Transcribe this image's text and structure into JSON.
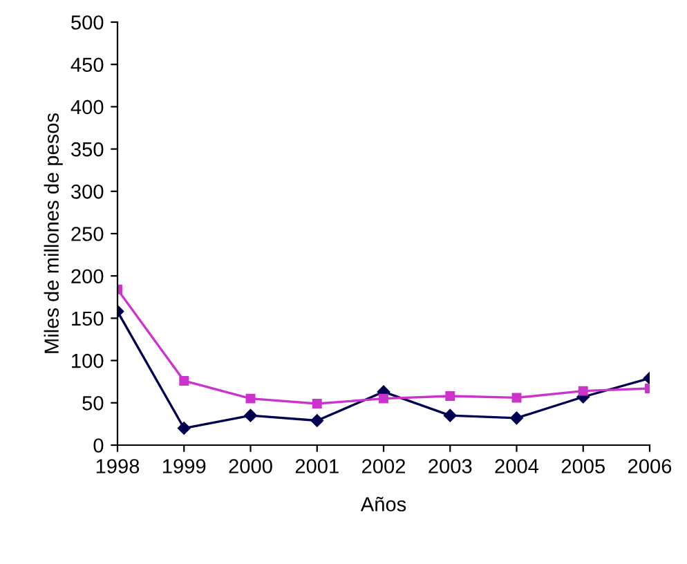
{
  "chart_data": {
    "type": "line",
    "xlabel": "Años",
    "ylabel": "Miles de millones de pesos",
    "categories": [
      "1998",
      "1999",
      "2000",
      "2001",
      "2002",
      "2003",
      "2004",
      "2005",
      "2006"
    ],
    "series": [
      {
        "color": "#000050",
        "marker": "diamond",
        "values": [
          158,
          20,
          35,
          29,
          63,
          35,
          32,
          57,
          79
        ]
      },
      {
        "color": "#cc33cc",
        "marker": "square",
        "values": [
          184,
          76,
          55,
          49,
          55,
          58,
          56,
          64,
          67
        ]
      }
    ],
    "ylim": [
      0,
      500
    ],
    "yticks": [
      0,
      50,
      100,
      150,
      200,
      250,
      300,
      350,
      400,
      450,
      500
    ],
    "grid": false,
    "legend": false
  }
}
